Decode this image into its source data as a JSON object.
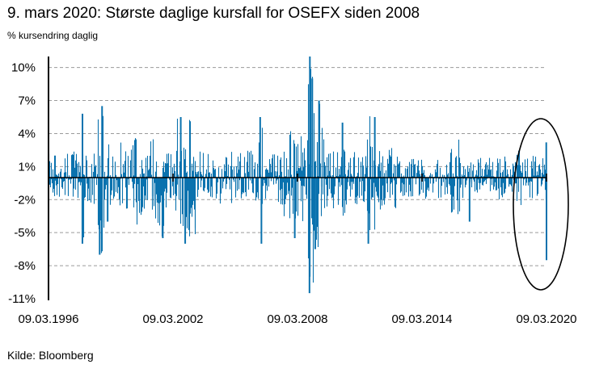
{
  "title": "9. mars 2020: Største daglige kursfall for OSEFX siden 2008",
  "ylabel": "% kursendring daglig",
  "source": "Kilde: Bloomberg",
  "colors": {
    "series": "#0A72AE",
    "grid": "#9a9a9a",
    "axis": "#000000"
  },
  "chart_data": {
    "type": "bar",
    "title": "9. mars 2020: Største daglige kursfall for OSEFX siden 2008",
    "ylabel": "% kursendring daglig",
    "xlabel": "",
    "ylim": [
      -11,
      11
    ],
    "y_ticks": [
      "10%",
      "7%",
      "4%",
      "1%",
      "-2%",
      "-5%",
      "-8%",
      "-11%"
    ],
    "y_tick_values": [
      10,
      7,
      4,
      1,
      -2,
      -5,
      -8,
      -11
    ],
    "x_ticks": [
      "09.03.1996",
      "09.03.2002",
      "09.03.2008",
      "09.03.2014",
      "09.03.2020"
    ],
    "x_range": [
      "1996-03-09",
      "2020-03-09"
    ],
    "grid": "horizontal dashed",
    "highlight": {
      "shape": "ellipse",
      "around": "2019-2020"
    },
    "series": [
      {
        "periods": [
          {
            "start": "1996-03-09",
            "end": "1997-10-20",
            "min": -2.0,
            "max": 2.5
          },
          {
            "start": "1997-10-20",
            "end": "1998-01-01",
            "min": -6.0,
            "max": 6.0
          },
          {
            "start": "1998-01-01",
            "end": "1998-08-01",
            "min": -2.5,
            "max": 2.5
          },
          {
            "start": "1998-08-01",
            "end": "1998-11-30",
            "min": -7.0,
            "max": 7.0
          },
          {
            "start": "1998-11-30",
            "end": "2000-04-01",
            "min": -3.0,
            "max": 3.5
          },
          {
            "start": "2000-04-01",
            "end": "2001-09-01",
            "min": -4.5,
            "max": 4.5
          },
          {
            "start": "2001-09-01",
            "end": "2001-10-15",
            "min": -6.0,
            "max": 4.0
          },
          {
            "start": "2001-10-15",
            "end": "2002-06-01",
            "min": -3.0,
            "max": 3.0
          },
          {
            "start": "2002-06-01",
            "end": "2003-04-01",
            "min": -6.0,
            "max": 5.5
          },
          {
            "start": "2003-04-01",
            "end": "2006-05-01",
            "min": -2.5,
            "max": 2.5
          },
          {
            "start": "2006-05-01",
            "end": "2006-06-30",
            "min": -6.0,
            "max": 5.5
          },
          {
            "start": "2006-06-30",
            "end": "2007-07-15",
            "min": -2.5,
            "max": 2.5
          },
          {
            "start": "2007-07-15",
            "end": "2008-01-31",
            "min": -5.0,
            "max": 4.5
          },
          {
            "start": "2008-01-31",
            "end": "2008-09-10",
            "min": -4.0,
            "max": 4.0
          },
          {
            "start": "2008-09-10",
            "end": "2008-12-20",
            "min": -10.5,
            "max": 10.5
          },
          {
            "start": "2008-12-20",
            "end": "2009-06-30",
            "min": -6.5,
            "max": 7.0
          },
          {
            "start": "2009-06-30",
            "end": "2010-04-25",
            "min": -3.0,
            "max": 3.0
          },
          {
            "start": "2010-04-25",
            "end": "2010-06-15",
            "min": -5.0,
            "max": 4.5
          },
          {
            "start": "2010-06-15",
            "end": "2011-07-25",
            "min": -2.5,
            "max": 2.5
          },
          {
            "start": "2011-07-25",
            "end": "2011-11-30",
            "min": -6.0,
            "max": 6.0
          },
          {
            "start": "2011-11-30",
            "end": "2013-01-01",
            "min": -3.0,
            "max": 3.0
          },
          {
            "start": "2013-01-01",
            "end": "2015-08-01",
            "min": -2.0,
            "max": 2.0
          },
          {
            "start": "2015-08-01",
            "end": "2016-03-01",
            "min": -3.5,
            "max": 3.5
          },
          {
            "start": "2016-03-01",
            "end": "2018-01-31",
            "min": -2.0,
            "max": 1.8
          },
          {
            "start": "2018-01-31",
            "end": "2018-03-01",
            "min": -3.0,
            "max": 2.5
          },
          {
            "start": "2018-03-01",
            "end": "2018-10-01",
            "min": -1.5,
            "max": 1.5
          },
          {
            "start": "2018-10-01",
            "end": "2019-01-10",
            "min": -3.5,
            "max": 3.0
          },
          {
            "start": "2019-01-10",
            "end": "2020-02-24",
            "min": -2.0,
            "max": 2.0
          },
          {
            "start": "2020-02-24",
            "end": "2020-03-06",
            "min": -4.8,
            "max": 2.5
          }
        ],
        "spikes": [
          {
            "date": "1996-07-01",
            "value": 2.0
          },
          {
            "date": "1997-10-28",
            "value": 5.8
          },
          {
            "date": "1997-10-27",
            "value": -6.0
          },
          {
            "date": "1998-08-27",
            "value": -7.0
          },
          {
            "date": "1998-10-08",
            "value": 6.5
          },
          {
            "date": "1999-01-14",
            "value": -4.0
          },
          {
            "date": "2001-09-11",
            "value": -5.5
          },
          {
            "date": "2002-07-24",
            "value": 5.5
          },
          {
            "date": "2002-10-10",
            "value": -6.0
          },
          {
            "date": "2006-06-13",
            "value": -6.0
          },
          {
            "date": "2006-05-22",
            "value": 5.5
          },
          {
            "date": "2008-01-21",
            "value": -5.5
          },
          {
            "date": "2008-10-13",
            "value": 11.0
          },
          {
            "date": "2008-10-06",
            "value": -10.5
          },
          {
            "date": "2008-10-10",
            "value": -9.0
          },
          {
            "date": "2008-11-24",
            "value": 9.0
          },
          {
            "date": "2009-01-15",
            "value": -6.5
          },
          {
            "date": "2009-03-23",
            "value": 7.0
          },
          {
            "date": "2010-05-10",
            "value": 5.0
          },
          {
            "date": "2011-08-08",
            "value": -6.0
          },
          {
            "date": "2011-11-30",
            "value": 5.5
          },
          {
            "date": "2016-06-24",
            "value": -4.0
          },
          {
            "date": "2020-03-05",
            "value": 3.2
          },
          {
            "date": "2020-03-09",
            "value": -7.5
          }
        ]
      }
    ]
  }
}
